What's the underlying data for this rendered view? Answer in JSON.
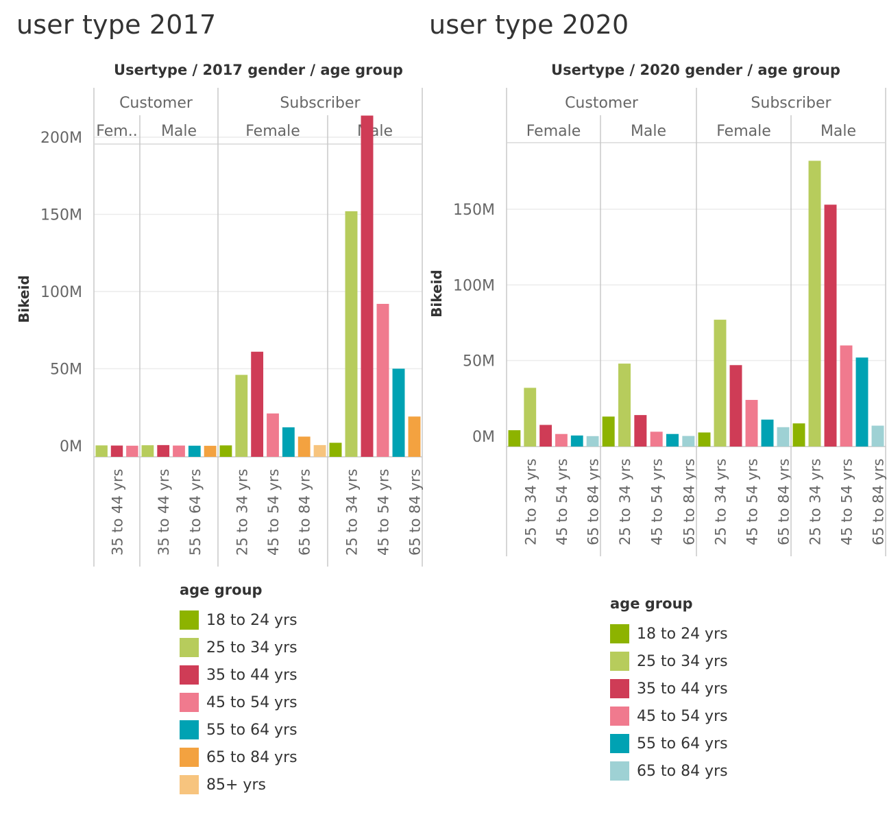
{
  "palette": {
    "18 to 24 yrs": "#8db300",
    "25 to 34 yrs": "#b7cc5c",
    "35 to 44 yrs": "#cf3c56",
    "45 to 54 yrs": "#f07a8e",
    "55 to 64 yrs": "#00a2b3",
    "65 to 84 yrs": "#f3a240",
    "85+ yrs": "#f7c47e",
    "65 to 84 yrs (2020)": "#9ed1d4"
  },
  "chart_data": [
    {
      "type": "bar",
      "title": "user type 2017",
      "header": [
        "Usertype",
        "2017 gender",
        "age group"
      ],
      "ylabel": "Bikeid",
      "ylim": [
        -8,
        228
      ],
      "yticks": [
        0,
        50,
        100,
        150,
        200
      ],
      "ytick_labels": [
        "0M",
        "50M",
        "100M",
        "150M",
        "200M"
      ],
      "usertypes": [
        {
          "name": "Customer",
          "genders": [
            {
              "name": "Fem..",
              "tick_labels": [
                "35 to 44 yrs"
              ],
              "bars": [
                {
                  "group": "25 to 34 yrs",
                  "value": 0.3
                },
                {
                  "group": "35 to 44 yrs",
                  "value": 0.2
                },
                {
                  "group": "45 to 54 yrs",
                  "value": 0.1
                }
              ]
            },
            {
              "name": "Male",
              "tick_labels": [
                "35 to 44 yrs",
                "55 to 64 yrs"
              ],
              "bars": [
                {
                  "group": "25 to 34 yrs",
                  "value": 0.4
                },
                {
                  "group": "35 to 44 yrs",
                  "value": 0.5
                },
                {
                  "group": "45 to 54 yrs",
                  "value": 0.2
                },
                {
                  "group": "55 to 64 yrs",
                  "value": 0.1
                },
                {
                  "group": "65 to 84 yrs",
                  "value": 0.05
                }
              ]
            }
          ]
        },
        {
          "name": "Subscriber",
          "genders": [
            {
              "name": "Female",
              "tick_labels": [
                "25 to 34 yrs",
                "45 to 54 yrs",
                "65 to 84 yrs"
              ],
              "bars": [
                {
                  "group": "18 to 24 yrs",
                  "value": 0.3
                },
                {
                  "group": "25 to 34 yrs",
                  "value": 46
                },
                {
                  "group": "35 to 44 yrs",
                  "value": 61
                },
                {
                  "group": "45 to 54 yrs",
                  "value": 21
                },
                {
                  "group": "55 to 64 yrs",
                  "value": 12
                },
                {
                  "group": "65 to 84 yrs",
                  "value": 6
                },
                {
                  "group": "85+ yrs",
                  "value": 0.5
                }
              ]
            },
            {
              "name": "Male",
              "tick_labels": [
                "25 to 34 yrs",
                "45 to 54 yrs",
                "65 to 84 yrs"
              ],
              "bars": [
                {
                  "group": "18 to 24 yrs",
                  "value": 2
                },
                {
                  "group": "25 to 34 yrs",
                  "value": 152
                },
                {
                  "group": "35 to 44 yrs",
                  "value": 214
                },
                {
                  "group": "45 to 54 yrs",
                  "value": 92
                },
                {
                  "group": "55 to 64 yrs",
                  "value": 50
                },
                {
                  "group": "65 to 84 yrs",
                  "value": 19
                }
              ]
            }
          ]
        }
      ],
      "legend": {
        "title": "age group",
        "items": [
          "18 to 24 yrs",
          "25 to 34 yrs",
          "35 to 44 yrs",
          "45 to 54 yrs",
          "55 to 64 yrs",
          "65 to 84 yrs",
          "85+ yrs"
        ]
      }
    },
    {
      "type": "bar",
      "title": "user type 2020",
      "header": [
        "Usertype",
        "2020 gender",
        "age group"
      ],
      "ylabel": "Bikeid",
      "ylim": [
        -7,
        184
      ],
      "yticks": [
        0,
        50,
        100,
        150
      ],
      "ytick_labels": [
        "0M",
        "50M",
        "100M",
        "150M"
      ],
      "usertypes": [
        {
          "name": "Customer",
          "genders": [
            {
              "name": "Female",
              "tick_labels": [
                "25 to 34 yrs",
                "45 to 54 yrs",
                "65 to 84 yrs"
              ],
              "bars": [
                {
                  "group": "18 to 24 yrs",
                  "value": 4
                },
                {
                  "group": "25 to 34 yrs",
                  "value": 32
                },
                {
                  "group": "35 to 44 yrs",
                  "value": 7.5
                },
                {
                  "group": "45 to 54 yrs",
                  "value": 1.5
                },
                {
                  "group": "55 to 64 yrs",
                  "value": 0.5
                },
                {
                  "group": "65 to 84 yrs",
                  "value": 0.1
                }
              ]
            },
            {
              "name": "Male",
              "tick_labels": [
                "25 to 34 yrs",
                "45 to 54 yrs",
                "65 to 84 yrs"
              ],
              "bars": [
                {
                  "group": "18 to 24 yrs",
                  "value": 13
                },
                {
                  "group": "25 to 34 yrs",
                  "value": 48
                },
                {
                  "group": "35 to 44 yrs",
                  "value": 14
                },
                {
                  "group": "45 to 54 yrs",
                  "value": 3
                },
                {
                  "group": "55 to 64 yrs",
                  "value": 1.5
                },
                {
                  "group": "65 to 84 yrs",
                  "value": 0.2
                }
              ]
            }
          ]
        },
        {
          "name": "Subscriber",
          "genders": [
            {
              "name": "Female",
              "tick_labels": [
                "25 to 34 yrs",
                "45 to 54 yrs",
                "65 to 84 yrs"
              ],
              "bars": [
                {
                  "group": "18 to 24 yrs",
                  "value": 2.5
                },
                {
                  "group": "25 to 34 yrs",
                  "value": 77
                },
                {
                  "group": "35 to 44 yrs",
                  "value": 47
                },
                {
                  "group": "45 to 54 yrs",
                  "value": 24
                },
                {
                  "group": "55 to 64 yrs",
                  "value": 11
                },
                {
                  "group": "65 to 84 yrs",
                  "value": 6
                }
              ]
            },
            {
              "name": "Male",
              "tick_labels": [
                "25 to 34 yrs",
                "45 to 54 yrs",
                "65 to 84 yrs"
              ],
              "bars": [
                {
                  "group": "18 to 24 yrs",
                  "value": 8.5
                },
                {
                  "group": "25 to 34 yrs",
                  "value": 182
                },
                {
                  "group": "35 to 44 yrs",
                  "value": 153
                },
                {
                  "group": "45 to 54 yrs",
                  "value": 60
                },
                {
                  "group": "55 to 64 yrs",
                  "value": 52
                },
                {
                  "group": "65 to 84 yrs",
                  "value": 7
                }
              ]
            }
          ]
        }
      ],
      "legend": {
        "title": "age group",
        "items": [
          "18 to 24 yrs",
          "25 to 34 yrs",
          "35 to 44 yrs",
          "45 to 54 yrs",
          "55 to 64 yrs",
          "65 to 84 yrs"
        ]
      }
    }
  ]
}
